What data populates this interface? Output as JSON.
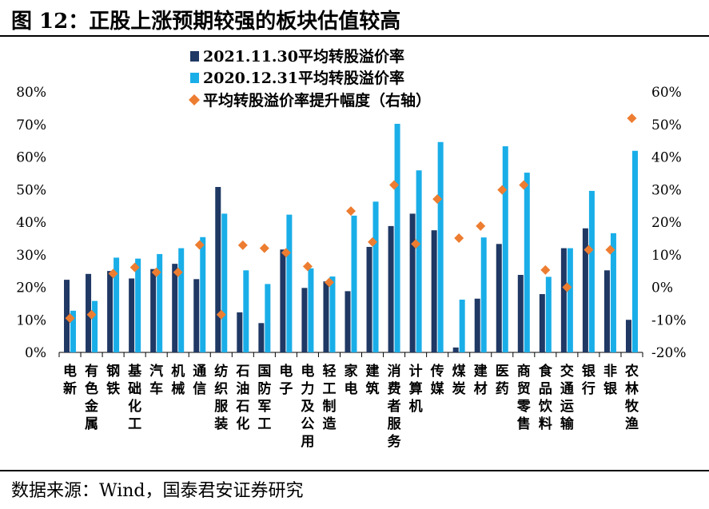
{
  "title": "图 12：正股上涨预期较强的板块估值较高",
  "source": "数据来源：Wind，国泰君安证券研究",
  "chart_data": {
    "type": "bar",
    "categories": [
      "电新",
      "有色金属",
      "钢铁",
      "基础化工",
      "汽车",
      "机械",
      "通信",
      "纺织服装",
      "石油石化",
      "国防军工",
      "电子",
      "电力及公用",
      "轻工制造",
      "家电",
      "建筑",
      "消费者服务",
      "计算机",
      "传媒",
      "煤炭",
      "建材",
      "医药",
      "商贸零售",
      "食品饮料",
      "交通运输",
      "银行",
      "非银",
      "农林牧渔"
    ],
    "series": [
      {
        "name": "2021.11.30平均转股溢价率",
        "type": "bar",
        "axis": "left",
        "color": "#1f3864",
        "values": [
          22.3,
          24.1,
          25.0,
          22.7,
          25.6,
          27.2,
          22.5,
          50.8,
          12.3,
          9.0,
          31.6,
          19.8,
          21.8,
          18.8,
          32.4,
          38.8,
          42.6,
          37.5,
          1.5,
          16.5,
          33.3,
          23.8,
          17.9,
          32.0,
          38.1,
          25.2,
          10.0
        ]
      },
      {
        "name": "2020.12.31平均转股溢价率",
        "type": "bar",
        "axis": "left",
        "color": "#1aaee8",
        "values": [
          12.8,
          15.8,
          29.1,
          28.8,
          30.2,
          32.0,
          35.4,
          42.6,
          25.2,
          21.0,
          42.3,
          25.8,
          23.3,
          42.0,
          46.3,
          70.2,
          55.9,
          64.6,
          16.2,
          35.3,
          63.3,
          55.2,
          23.2,
          32.0,
          49.6,
          36.6,
          61.9
        ]
      },
      {
        "name": "平均转股溢价率提升幅度（右轴）",
        "type": "scatter",
        "axis": "right",
        "color": "#ed7d31",
        "values": [
          -9.5,
          -8.4,
          4.2,
          6.1,
          4.6,
          4.6,
          13.0,
          -8.4,
          12.9,
          12.0,
          10.6,
          6.4,
          1.5,
          23.4,
          13.9,
          31.4,
          13.3,
          27.1,
          15.1,
          18.8,
          29.9,
          31.4,
          5.3,
          0.0,
          11.5,
          11.5,
          51.9
        ]
      }
    ],
    "ylim": [
      0,
      80
    ],
    "yticks": [
      "0%",
      "10%",
      "20%",
      "30%",
      "40%",
      "50%",
      "60%",
      "70%",
      "80%"
    ],
    "y2lim": [
      -20,
      60
    ],
    "y2ticks": [
      "-20%",
      "-10%",
      "0%",
      "10%",
      "20%",
      "30%",
      "40%",
      "50%",
      "60%"
    ],
    "legend_position": "top"
  }
}
